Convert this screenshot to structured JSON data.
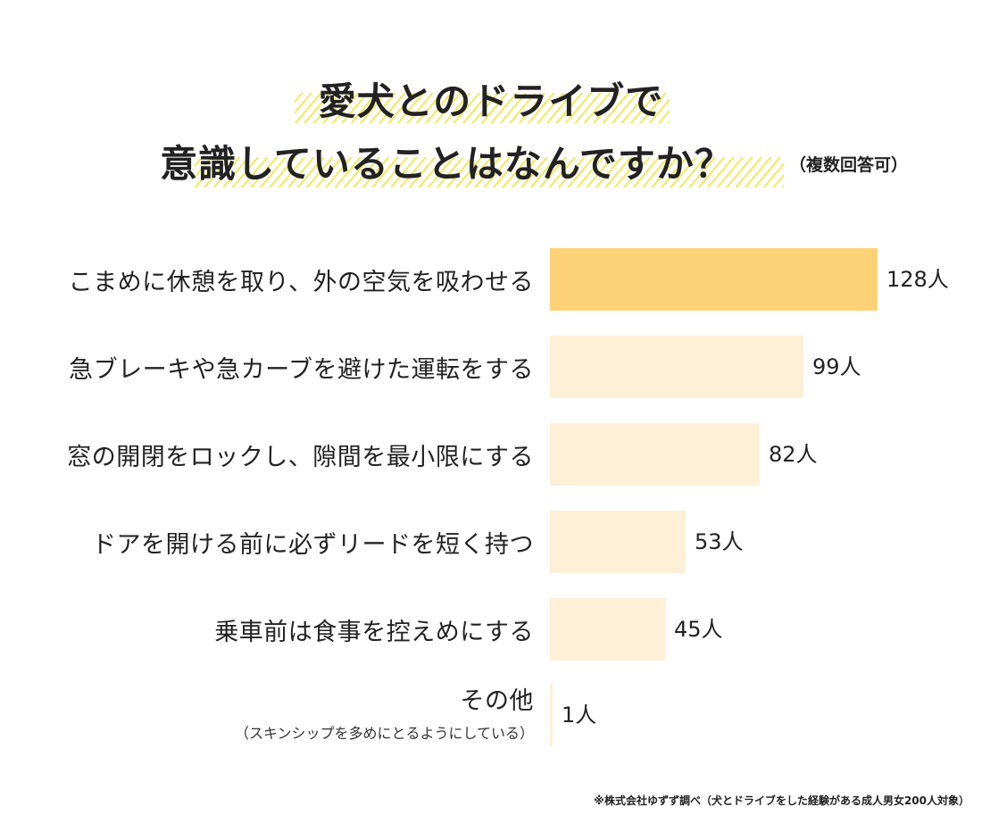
{
  "colors": {
    "highlight_bar": "#fdd276",
    "normal_bar": "#fdf0d6",
    "title_stripe": "#f2e95a",
    "text": "#222222"
  },
  "chart_data": {
    "type": "bar",
    "orientation": "horizontal",
    "title_line1": "愛犬とのドライブで",
    "title_line2": "意識していることはなんですか？",
    "title_note": "（複数回答可）",
    "categories": [
      "こまめに休憩を取り、外の空気を吸わせる",
      "急ブレーキや急カーブを避けた運転をする",
      "窓の開閉をロックし、隙間を最小限にする",
      "ドアを開ける前に必ずリードを短く持つ",
      "乗車前は食事を控えめにする",
      "その他"
    ],
    "sublabels": [
      "",
      "",
      "",
      "",
      "",
      "（スキンシップを多めにとるようにしている）"
    ],
    "values": [
      128,
      99,
      82,
      53,
      45,
      1
    ],
    "value_labels": [
      "128人",
      "99人",
      "82人",
      "53人",
      "45人",
      "1人"
    ],
    "highlight_index": 0,
    "xlim": [
      0,
      128
    ],
    "grid": false,
    "footnote": "※株式会社ゆずず調べ（犬とドライブをした経験がある成人男女200人対象）"
  }
}
